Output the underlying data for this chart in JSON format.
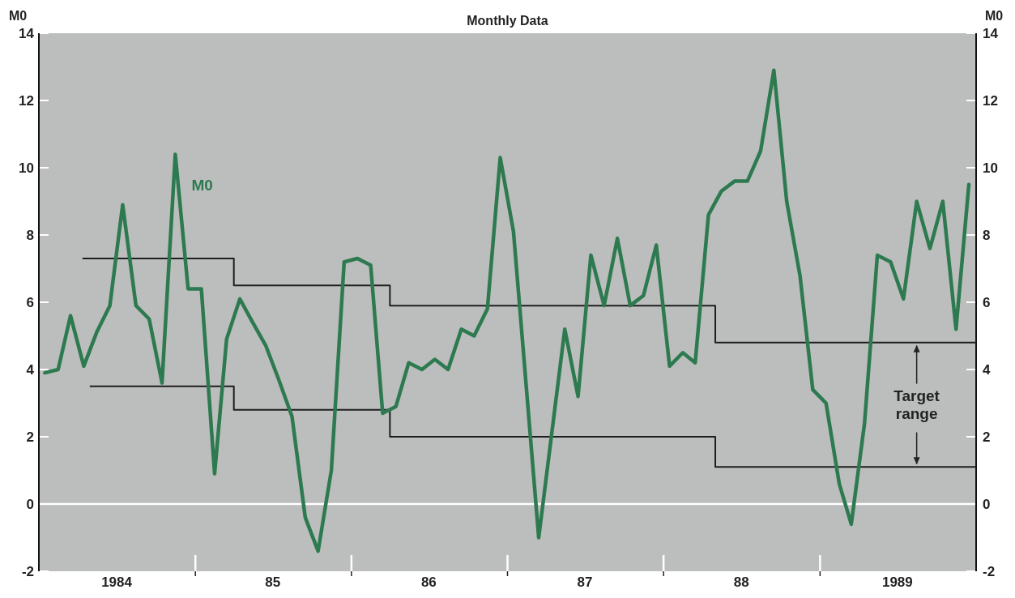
{
  "chart_data": {
    "type": "line",
    "title": "Monthly Data",
    "ylabel": "M0",
    "y2label": "M0",
    "xlim": [
      "1984-01-01",
      "1990-01-01"
    ],
    "xticks": [
      {
        "value": "1984-07-01",
        "label": "1984"
      },
      {
        "value": "1985-01-01",
        "label": null
      },
      {
        "value": "1985-07-01",
        "label": "85"
      },
      {
        "value": "1986-01-01",
        "label": null
      },
      {
        "value": "1986-07-01",
        "label": "86"
      },
      {
        "value": "1987-01-01",
        "label": null
      },
      {
        "value": "1987-07-01",
        "label": "87"
      },
      {
        "value": "1988-01-01",
        "label": null
      },
      {
        "value": "1988-07-01",
        "label": "88"
      },
      {
        "value": "1989-01-01",
        "label": null
      },
      {
        "value": "1989-07-01",
        "label": "1989"
      }
    ],
    "ylim": [
      -2,
      14
    ],
    "yticks": [
      -2,
      0,
      2,
      4,
      6,
      8,
      10,
      12,
      14
    ],
    "y2lim": [
      -2,
      14
    ],
    "y2ticks": [
      -2,
      0,
      2,
      4,
      6,
      8,
      10,
      12,
      14
    ],
    "grid": false,
    "legend": false,
    "ref_lines": [
      {
        "axis": "y",
        "value": 0,
        "color": "#ffffff"
      }
    ],
    "annotations": [
      {
        "text": "Target range",
        "x": "1989-08-15",
        "y": 4.8
      }
    ],
    "series": [
      {
        "name": "M0",
        "color": "#2e7a50",
        "x": [
          "1984-01-15",
          "1984-02-15",
          "1984-03-15",
          "1984-04-15",
          "1984-05-15",
          "1984-06-15",
          "1984-07-15",
          "1984-08-15",
          "1984-09-15",
          "1984-10-15",
          "1984-11-15",
          "1984-12-15",
          "1985-01-15",
          "1985-02-15",
          "1985-03-15",
          "1985-04-15",
          "1985-05-15",
          "1985-06-15",
          "1985-07-15",
          "1985-08-15",
          "1985-09-15",
          "1985-10-15",
          "1985-11-15",
          "1985-12-15",
          "1986-01-15",
          "1986-02-15",
          "1986-03-15",
          "1986-04-15",
          "1986-05-15",
          "1986-06-15",
          "1986-07-15",
          "1986-08-15",
          "1986-09-15",
          "1986-10-15",
          "1986-11-15",
          "1986-12-15",
          "1987-01-15",
          "1987-03-15",
          "1987-05-15",
          "1987-06-15",
          "1987-07-15",
          "1987-08-15",
          "1987-09-15",
          "1987-10-15",
          "1987-11-15",
          "1987-12-15",
          "1988-01-15",
          "1988-02-15",
          "1988-03-15",
          "1988-04-15",
          "1988-05-15",
          "1988-06-15",
          "1988-07-15",
          "1988-08-15",
          "1988-09-15",
          "1988-10-15",
          "1988-11-15",
          "1988-12-15",
          "1989-01-15",
          "1989-02-15",
          "1989-03-15",
          "1989-04-15",
          "1989-05-15",
          "1989-06-15",
          "1989-07-15",
          "1989-08-15",
          "1989-09-15",
          "1989-10-15",
          "1989-11-15",
          "1989-12-15"
        ],
        "values": [
          3.9,
          4.0,
          5.6,
          4.1,
          5.1,
          5.9,
          8.9,
          5.9,
          5.5,
          3.6,
          10.4,
          6.4,
          6.4,
          0.9,
          4.9,
          6.1,
          5.4,
          4.7,
          3.7,
          2.6,
          -0.4,
          -1.4,
          1.0,
          7.2,
          7.3,
          7.1,
          2.7,
          2.9,
          4.2,
          4.0,
          4.3,
          4.0,
          5.2,
          5.0,
          5.8,
          10.3,
          8.1,
          -1.0,
          5.2,
          3.2,
          7.4,
          5.9,
          7.9,
          5.9,
          6.2,
          7.7,
          4.1,
          4.5,
          4.2,
          8.6,
          9.3,
          9.6,
          9.6,
          10.5,
          12.9,
          9.0,
          6.8,
          3.4,
          3.0,
          0.6,
          -0.6,
          2.4,
          7.4,
          7.2,
          6.1,
          9.0,
          7.6,
          9.0,
          5.2,
          9.5
        ]
      },
      {
        "type": "step",
        "color": "#1e1e1e",
        "x": [
          "1984-04-12",
          "1985-04-01",
          "1986-04-01",
          "1988-05-01",
          "1990-01-01"
        ],
        "values": [
          7.3,
          6.5,
          5.9,
          4.8,
          4.8
        ]
      },
      {
        "type": "step",
        "color": "#1e1e1e",
        "x": [
          "1984-04-29",
          "1985-04-01",
          "1986-04-01",
          "1988-05-01",
          "1990-01-01"
        ],
        "values": [
          3.5,
          2.8,
          2.0,
          1.1,
          1.1
        ]
      }
    ]
  }
}
